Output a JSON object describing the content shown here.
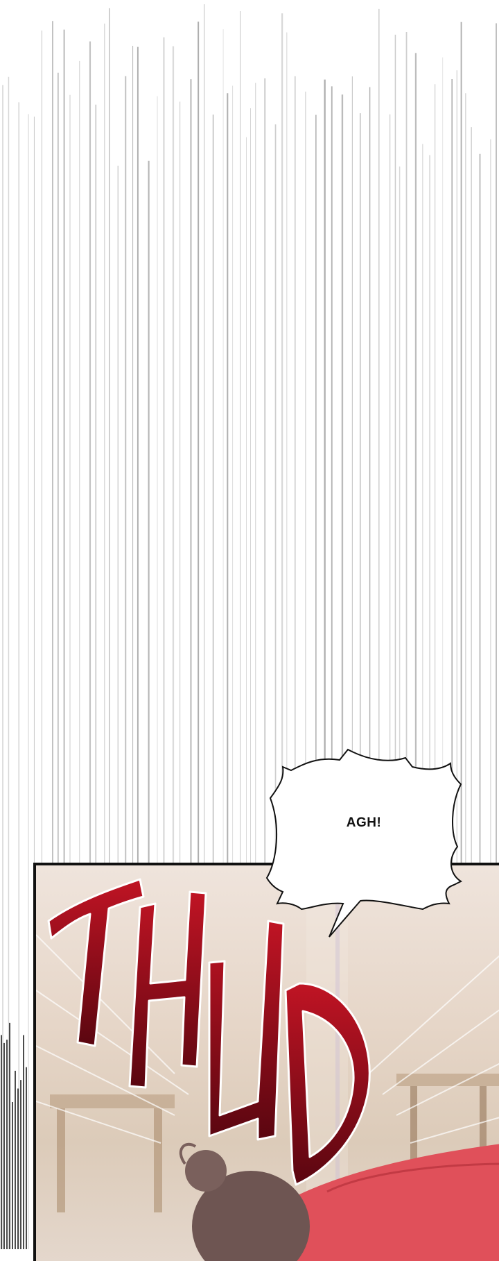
{
  "speech_bubble": {
    "text": "AGH!"
  },
  "sound_effect": {
    "text": "THUD",
    "color": "#9e0f1e"
  },
  "colors": {
    "background": "#ffffff",
    "speed_lines": "#9a9a9a",
    "panel_border": "#111111",
    "garment": "#e0505a",
    "hair": "#6e5552"
  }
}
